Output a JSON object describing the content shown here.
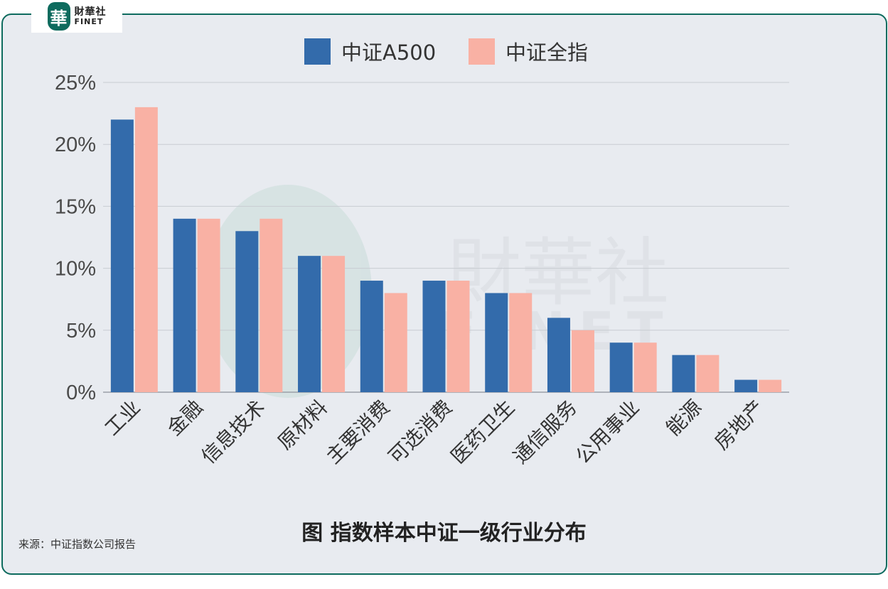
{
  "logo": {
    "seal_char": "華",
    "name_cn": "財華社",
    "name_en": "FINET"
  },
  "watermark": {
    "text_cn": "財華社",
    "text_en": "FINET"
  },
  "colors": {
    "series1": "#336bab",
    "series2": "#f9b1a4",
    "frame": "#0e6b5e",
    "background": "#e8ebf0"
  },
  "chart_data": {
    "type": "bar",
    "categories": [
      "工业",
      "金融",
      "信息技术",
      "原材料",
      "主要消费",
      "可选消费",
      "医药卫生",
      "通信服务",
      "公用事业",
      "能源",
      "房地产"
    ],
    "series": [
      {
        "name": "中证A500",
        "values": [
          22,
          14,
          13,
          11,
          9,
          9,
          8,
          6,
          4,
          3,
          1
        ]
      },
      {
        "name": "中证全指",
        "values": [
          23,
          14,
          14,
          11,
          8,
          9,
          8,
          5,
          4,
          3,
          1
        ]
      }
    ],
    "ylim": [
      0,
      25
    ],
    "yticks": [
      0,
      5,
      10,
      15,
      20,
      25
    ],
    "ytick_labels": [
      "0%",
      "5%",
      "10%",
      "15%",
      "20%",
      "25%"
    ],
    "legend_position": "top-center",
    "grid": true
  },
  "caption": "图 指数样本中证一级行业分布",
  "source": "来源：中证指数公司报告"
}
